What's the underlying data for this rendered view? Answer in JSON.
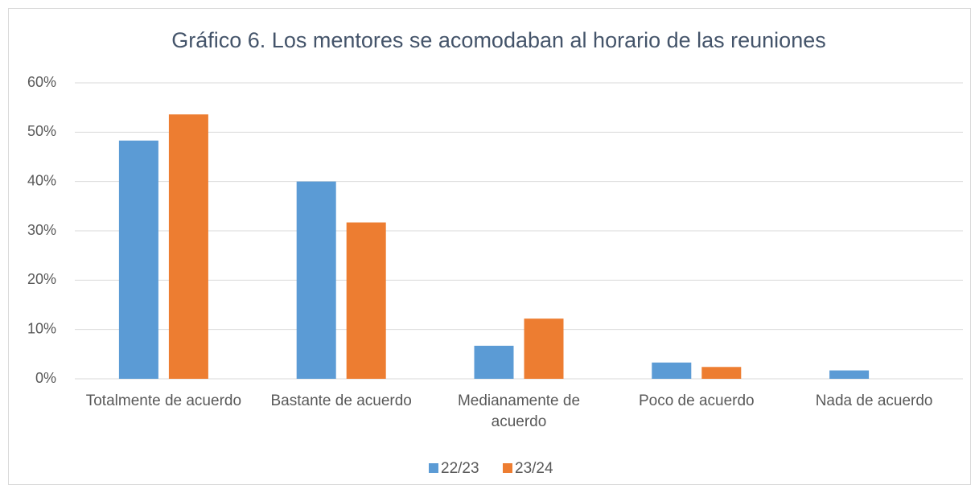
{
  "chart_data": {
    "type": "bar",
    "title": "Gráfico 6. Los mentores se acomodaban al horario de las reuniones",
    "categories": [
      "Totalmente de acuerdo",
      "Bastante de acuerdo",
      "Medianamente de acuerdo",
      "Poco de acuerdo",
      "Nada de acuerdo"
    ],
    "series": [
      {
        "name": "22/23",
        "color": "#5b9bd5",
        "values": [
          48.3,
          40.0,
          6.7,
          3.3,
          1.7
        ]
      },
      {
        "name": "23/24",
        "color": "#ed7d31",
        "values": [
          53.6,
          31.7,
          12.2,
          2.4,
          0
        ]
      }
    ],
    "ylim": [
      0,
      60
    ],
    "yticks": [
      {
        "value": 0,
        "label": "0%"
      },
      {
        "value": 10,
        "label": "10%"
      },
      {
        "value": 20,
        "label": "20%"
      },
      {
        "value": 30,
        "label": "30%"
      },
      {
        "value": 40,
        "label": "40%"
      },
      {
        "value": 50,
        "label": "50%"
      },
      {
        "value": 60,
        "label": "60%"
      }
    ],
    "grid": true,
    "legend": "bottom"
  }
}
